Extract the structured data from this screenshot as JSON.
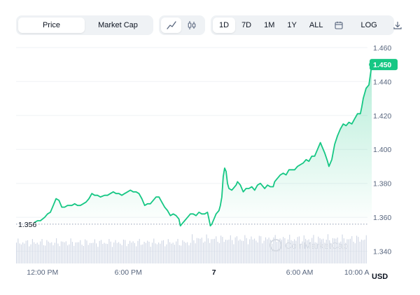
{
  "toolbar": {
    "metric_tabs": [
      "Price",
      "Market Cap"
    ],
    "active_metric": "Price",
    "chart_types": [
      "line-chart-icon",
      "candlestick-icon"
    ],
    "active_chart_type": "line-chart-icon",
    "ranges": [
      "1D",
      "7D",
      "1M",
      "1Y",
      "ALL"
    ],
    "active_range": "1D",
    "calendar_icon": "calendar-icon",
    "log_label": "LOG",
    "download_icon": "download-icon"
  },
  "colors": {
    "line": "#16c784",
    "fill_top": "#16c784",
    "dotted_baseline": "#a6b0c3",
    "volume_bar": "#cfd6e4",
    "grid": "#eff2f5",
    "price_tag_bg": "#16c784"
  },
  "watermark": "CoinMarketCap",
  "chart_data": {
    "type": "line",
    "currency": "USD",
    "ylim": [
      1.332,
      1.462
    ],
    "yticks": [
      1.46,
      1.44,
      1.42,
      1.4,
      1.38,
      1.36,
      1.34
    ],
    "ytick_labels": [
      "1.460",
      "1.440",
      "1.420",
      "1.400",
      "1.380",
      "1.360",
      "1.340"
    ],
    "xticks": [
      {
        "label": "12:00 PM",
        "t": 0.55
      },
      {
        "label": "6:00 PM",
        "t": 6.55
      },
      {
        "label": "7",
        "t": 12.55
      },
      {
        "label": "6:00 AM",
        "t": 18.55
      },
      {
        "label": "10:00 A",
        "t": 22.55
      }
    ],
    "t_range": [
      -1.3,
      23.3
    ],
    "open_price": 1.356,
    "open_label": "1.356",
    "current_price": 1.45,
    "current_label": "1.450",
    "points": [
      [
        0.0,
        1.357
      ],
      [
        0.2,
        1.358
      ],
      [
        0.4,
        1.358
      ],
      [
        0.7,
        1.36
      ],
      [
        0.9,
        1.362
      ],
      [
        1.1,
        1.363
      ],
      [
        1.3,
        1.367
      ],
      [
        1.5,
        1.371
      ],
      [
        1.7,
        1.37
      ],
      [
        1.9,
        1.366
      ],
      [
        2.1,
        1.366
      ],
      [
        2.3,
        1.367
      ],
      [
        2.6,
        1.367
      ],
      [
        2.8,
        1.368
      ],
      [
        3.0,
        1.367
      ],
      [
        3.2,
        1.367
      ],
      [
        3.4,
        1.368
      ],
      [
        3.6,
        1.369
      ],
      [
        3.8,
        1.371
      ],
      [
        4.0,
        1.374
      ],
      [
        4.2,
        1.373
      ],
      [
        4.4,
        1.373
      ],
      [
        4.6,
        1.372
      ],
      [
        4.9,
        1.373
      ],
      [
        5.1,
        1.373
      ],
      [
        5.3,
        1.374
      ],
      [
        5.5,
        1.375
      ],
      [
        5.7,
        1.374
      ],
      [
        5.9,
        1.374
      ],
      [
        6.1,
        1.373
      ],
      [
        6.3,
        1.374
      ],
      [
        6.5,
        1.375
      ],
      [
        6.7,
        1.376
      ],
      [
        6.9,
        1.375
      ],
      [
        7.1,
        1.375
      ],
      [
        7.3,
        1.374
      ],
      [
        7.5,
        1.371
      ],
      [
        7.7,
        1.367
      ],
      [
        7.9,
        1.368
      ],
      [
        8.1,
        1.368
      ],
      [
        8.3,
        1.37
      ],
      [
        8.5,
        1.372
      ],
      [
        8.7,
        1.372
      ],
      [
        8.9,
        1.369
      ],
      [
        9.1,
        1.366
      ],
      [
        9.3,
        1.364
      ],
      [
        9.5,
        1.361
      ],
      [
        9.7,
        1.362
      ],
      [
        9.9,
        1.361
      ],
      [
        10.1,
        1.359
      ],
      [
        10.2,
        1.355
      ],
      [
        10.3,
        1.356
      ],
      [
        10.5,
        1.358
      ],
      [
        10.7,
        1.36
      ],
      [
        10.9,
        1.362
      ],
      [
        11.1,
        1.362
      ],
      [
        11.3,
        1.361
      ],
      [
        11.5,
        1.363
      ],
      [
        11.7,
        1.362
      ],
      [
        11.9,
        1.362
      ],
      [
        12.1,
        1.363
      ],
      [
        12.2,
        1.359
      ],
      [
        12.3,
        1.355
      ],
      [
        12.4,
        1.356
      ],
      [
        12.6,
        1.36
      ],
      [
        12.7,
        1.362
      ],
      [
        12.9,
        1.364
      ],
      [
        13.0,
        1.367
      ],
      [
        13.1,
        1.372
      ],
      [
        13.2,
        1.384
      ],
      [
        13.3,
        1.389
      ],
      [
        13.4,
        1.387
      ],
      [
        13.5,
        1.38
      ],
      [
        13.6,
        1.377
      ],
      [
        13.8,
        1.376
      ],
      [
        13.9,
        1.377
      ],
      [
        14.1,
        1.379
      ],
      [
        14.2,
        1.381
      ],
      [
        14.4,
        1.379
      ],
      [
        14.6,
        1.375
      ],
      [
        14.8,
        1.377
      ],
      [
        15.0,
        1.377
      ],
      [
        15.2,
        1.378
      ],
      [
        15.4,
        1.376
      ],
      [
        15.6,
        1.379
      ],
      [
        15.8,
        1.38
      ],
      [
        15.9,
        1.379
      ],
      [
        16.1,
        1.377
      ],
      [
        16.3,
        1.379
      ],
      [
        16.5,
        1.378
      ],
      [
        16.7,
        1.378
      ],
      [
        16.8,
        1.381
      ],
      [
        17.0,
        1.383
      ],
      [
        17.2,
        1.385
      ],
      [
        17.4,
        1.386
      ],
      [
        17.6,
        1.385
      ],
      [
        17.8,
        1.388
      ],
      [
        18.0,
        1.388
      ],
      [
        18.2,
        1.388
      ],
      [
        18.4,
        1.39
      ],
      [
        18.6,
        1.391
      ],
      [
        18.8,
        1.392
      ],
      [
        19.0,
        1.394
      ],
      [
        19.2,
        1.393
      ],
      [
        19.4,
        1.396
      ],
      [
        19.6,
        1.396
      ],
      [
        19.8,
        1.4
      ],
      [
        20.0,
        1.404
      ],
      [
        20.1,
        1.402
      ],
      [
        20.3,
        1.398
      ],
      [
        20.5,
        1.393
      ],
      [
        20.6,
        1.39
      ],
      [
        20.8,
        1.394
      ],
      [
        21.0,
        1.403
      ],
      [
        21.2,
        1.408
      ],
      [
        21.4,
        1.412
      ],
      [
        21.6,
        1.415
      ],
      [
        21.8,
        1.414
      ],
      [
        22.0,
        1.416
      ],
      [
        22.2,
        1.415
      ],
      [
        22.4,
        1.418
      ],
      [
        22.6,
        1.421
      ],
      [
        22.8,
        1.421
      ],
      [
        22.9,
        1.425
      ],
      [
        23.0,
        1.43
      ],
      [
        23.2,
        1.436
      ],
      [
        23.4,
        1.438
      ],
      [
        23.5,
        1.444
      ],
      [
        23.6,
        1.45
      ]
    ],
    "volume_bars": 220
  }
}
